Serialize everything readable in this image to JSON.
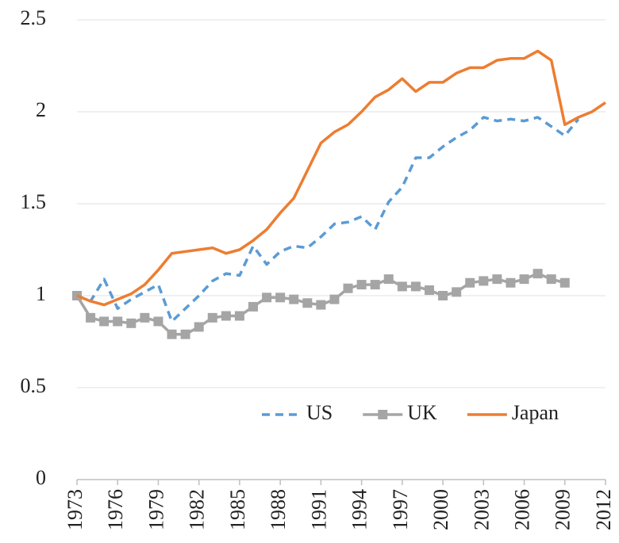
{
  "chart_data": {
    "type": "line",
    "x": [
      1973,
      1974,
      1975,
      1976,
      1977,
      1978,
      1979,
      1980,
      1981,
      1982,
      1983,
      1984,
      1985,
      1986,
      1987,
      1988,
      1989,
      1990,
      1991,
      1992,
      1993,
      1994,
      1995,
      1996,
      1997,
      1998,
      1999,
      2000,
      2001,
      2002,
      2003,
      2004,
      2005,
      2006,
      2007,
      2008,
      2009,
      2010,
      2011,
      2012
    ],
    "series": [
      {
        "name": "US",
        "color": "#5b9bd5",
        "dash": true,
        "marker": false,
        "values": [
          1.0,
          0.97,
          1.09,
          0.93,
          0.98,
          1.02,
          1.06,
          0.86,
          0.93,
          1.0,
          1.08,
          1.12,
          1.11,
          1.27,
          1.17,
          1.24,
          1.27,
          1.26,
          1.32,
          1.39,
          1.4,
          1.43,
          1.36,
          1.51,
          1.59,
          1.75,
          1.75,
          1.81,
          1.86,
          1.9,
          1.97,
          1.95,
          1.96,
          1.95,
          1.97,
          1.92,
          1.87,
          1.96,
          null,
          null
        ]
      },
      {
        "name": "UK",
        "color": "#a5a5a5",
        "dash": false,
        "marker": true,
        "values": [
          1.0,
          0.88,
          0.86,
          0.86,
          0.85,
          0.88,
          0.86,
          0.79,
          0.79,
          0.83,
          0.88,
          0.89,
          0.89,
          0.94,
          0.99,
          0.99,
          0.98,
          0.96,
          0.95,
          0.98,
          1.04,
          1.06,
          1.06,
          1.09,
          1.05,
          1.05,
          1.03,
          1.0,
          1.02,
          1.07,
          1.08,
          1.09,
          1.07,
          1.09,
          1.12,
          1.09,
          1.07,
          null,
          null,
          null
        ]
      },
      {
        "name": "Japan",
        "color": "#ed7d31",
        "dash": false,
        "marker": false,
        "values": [
          1.0,
          0.97,
          0.95,
          0.98,
          1.01,
          1.06,
          1.14,
          1.23,
          1.24,
          1.25,
          1.26,
          1.23,
          1.25,
          1.3,
          1.36,
          1.45,
          1.53,
          1.68,
          1.83,
          1.89,
          1.93,
          2.0,
          2.08,
          2.12,
          2.18,
          2.11,
          2.16,
          2.16,
          2.21,
          2.24,
          2.24,
          2.28,
          2.29,
          2.29,
          2.33,
          2.28,
          1.93,
          1.97,
          2.0,
          2.05
        ]
      }
    ],
    "xlim": [
      1973,
      2012
    ],
    "xticks": [
      1973,
      1976,
      1979,
      1982,
      1985,
      1988,
      1991,
      1994,
      1997,
      2000,
      2003,
      2006,
      2009,
      2012
    ],
    "ylim": [
      0,
      2.5
    ],
    "yticks": [
      0,
      0.5,
      1,
      1.5,
      2,
      2.5
    ],
    "grid": true,
    "legend": "lower right"
  }
}
